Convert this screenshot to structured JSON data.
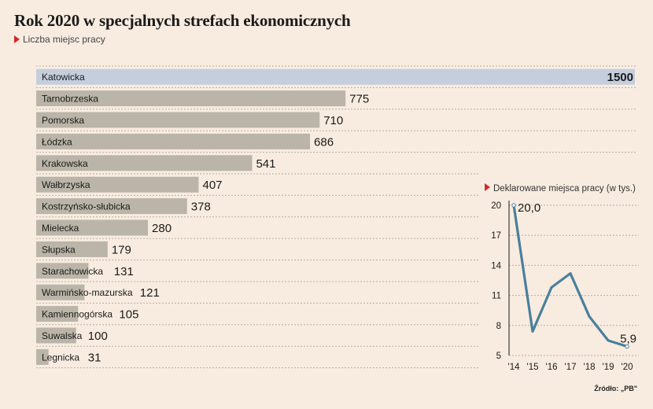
{
  "header": {
    "title": "Rok 2020 w specjalnych strefach ekonomicznych",
    "subtitle": "Liczba miejsc pracy"
  },
  "source": "Źródło: „PB\"",
  "colors": {
    "background": "#f8ece0",
    "bar": "#bab5a8",
    "highlight_bar": "#c5cedc",
    "line": "#4a7f9d",
    "marker": "#d4282b"
  },
  "chart_data": [
    {
      "type": "bar",
      "orientation": "horizontal",
      "title": "Liczba miejsc pracy",
      "xlim": [
        0,
        1500
      ],
      "grid": "dotted separators",
      "categories": [
        "Katowicka",
        "Tarnobrzeska",
        "Pomorska",
        "Łódzka",
        "Krakowska",
        "Wałbrzyska",
        "Kostrzyńsko-słubicka",
        "Mielecka",
        "Słupska",
        "Starachowicka",
        "Warmińsko-mazurska",
        "Kamiennogórska",
        "Suwalska",
        "Legnicka"
      ],
      "values": [
        1500,
        775,
        710,
        686,
        541,
        407,
        378,
        280,
        179,
        131,
        121,
        105,
        100,
        31
      ],
      "value_labels": [
        "1500",
        "775",
        "710",
        "686",
        "541",
        "407",
        "378",
        "280",
        "179",
        "131",
        "121",
        "105",
        "100",
        "31"
      ],
      "highlight": "Katowicka"
    },
    {
      "type": "line",
      "title": "Deklarowane miejsca pracy (w tys.)",
      "x": [
        "'14",
        "'15",
        "'16",
        "'17",
        "'18",
        "'19",
        "'20"
      ],
      "y": [
        20.0,
        7.4,
        11.8,
        13.2,
        8.9,
        6.5,
        5.9
      ],
      "ylim": [
        5,
        20
      ],
      "yticks": [
        "20",
        "17",
        "14",
        "11",
        "8",
        "5"
      ],
      "annotations": [
        {
          "x": "'14",
          "text": "20,0"
        },
        {
          "x": "'20",
          "text": "5,9"
        }
      ],
      "grid": "dotted horizontal"
    }
  ]
}
